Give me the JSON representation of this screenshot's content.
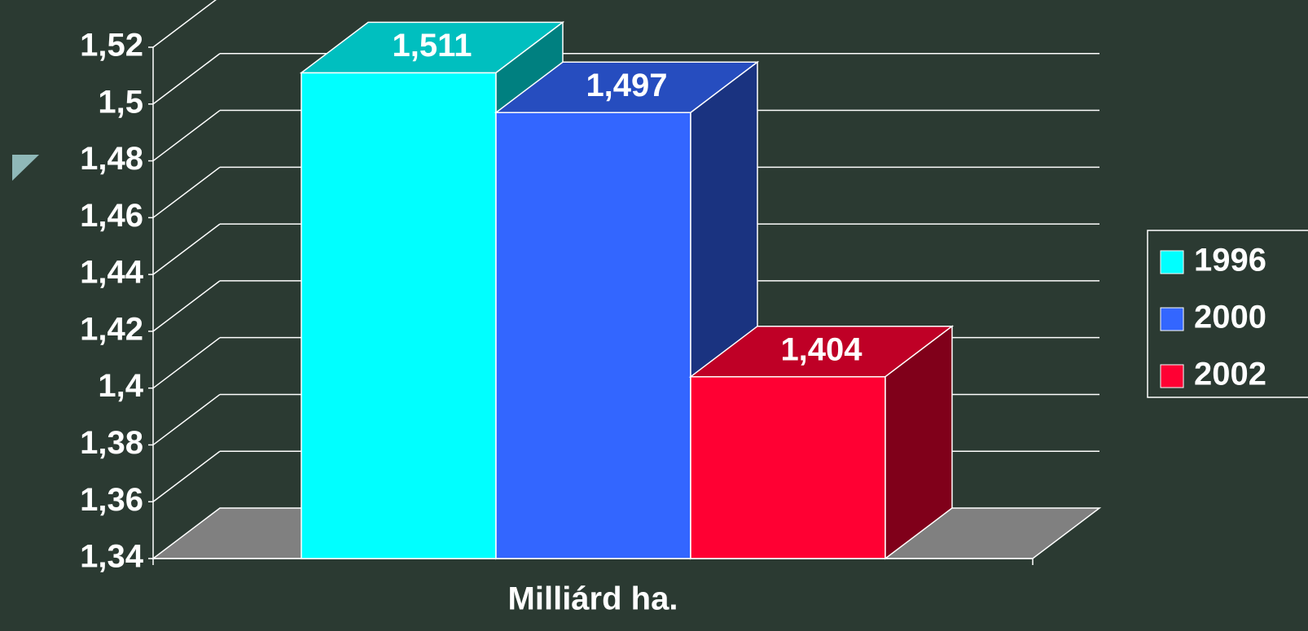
{
  "chart_data": {
    "type": "bar3d",
    "categories": [
      "Milliárd ha."
    ],
    "series": [
      {
        "name": "1996",
        "color": "#00ffff",
        "values": [
          1.511
        ],
        "value_labels": [
          "1,511"
        ]
      },
      {
        "name": "2000",
        "color": "#3366ff",
        "values": [
          1.497
        ],
        "value_labels": [
          "1,497"
        ]
      },
      {
        "name": "2002",
        "color": "#ff0033",
        "values": [
          1.404
        ],
        "value_labels": [
          "1,404"
        ]
      }
    ],
    "ylim": [
      1.34,
      1.52
    ],
    "yticks": [
      {
        "value": 1.34,
        "label": "1,34"
      },
      {
        "value": 1.36,
        "label": "1,36"
      },
      {
        "value": 1.38,
        "label": "1,38"
      },
      {
        "value": 1.4,
        "label": "1,4"
      },
      {
        "value": 1.42,
        "label": "1,42"
      },
      {
        "value": 1.44,
        "label": "1,44"
      },
      {
        "value": 1.46,
        "label": "1,46"
      },
      {
        "value": 1.48,
        "label": "1,48"
      },
      {
        "value": 1.5,
        "label": "1,5"
      },
      {
        "value": 1.52,
        "label": "1,52"
      }
    ],
    "grid": true,
    "legend": "right"
  }
}
